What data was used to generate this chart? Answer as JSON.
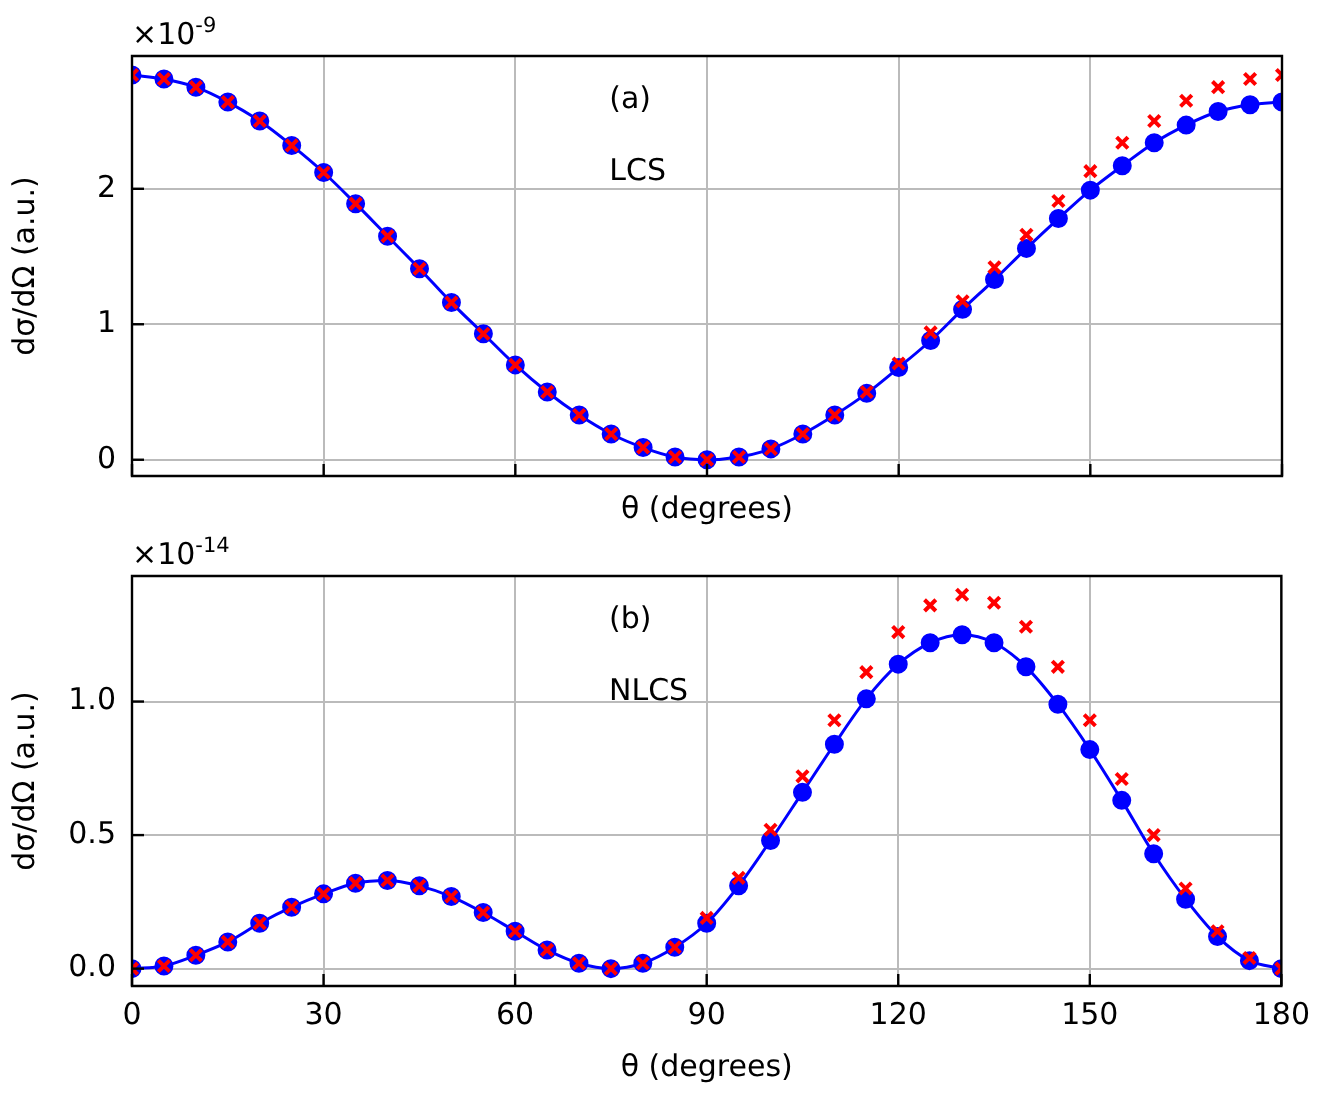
{
  "chart_data": [
    {
      "type": "line",
      "xlabel": "θ (degrees)",
      "ylabel": "dσ/dΩ (a.u.)",
      "annotations": [
        "×10$^{-9}$",
        "(a)",
        "LCS"
      ],
      "x": [
        0,
        5,
        10,
        15,
        20,
        25,
        30,
        35,
        40,
        45,
        50,
        55,
        60,
        65,
        70,
        75,
        80,
        85,
        90,
        95,
        100,
        105,
        110,
        115,
        120,
        125,
        130,
        135,
        140,
        145,
        150,
        155,
        160,
        165,
        170,
        175,
        180
      ],
      "series": [
        {
          "type": "line",
          "color": "#0000ff",
          "marker": "circle",
          "values": [
            2.84,
            2.81,
            2.75,
            2.64,
            2.5,
            2.32,
            2.12,
            1.89,
            1.65,
            1.41,
            1.16,
            0.93,
            0.7,
            0.5,
            0.33,
            0.19,
            0.09,
            0.02,
            0,
            0.02,
            0.08,
            0.19,
            0.33,
            0.49,
            0.68,
            0.88,
            1.11,
            1.33,
            1.56,
            1.78,
            1.99,
            2.17,
            2.34,
            2.47,
            2.57,
            2.62,
            2.64
          ]
        },
        {
          "type": "scatter",
          "color": "#ff0000",
          "marker": "cross",
          "values": [
            2.84,
            2.81,
            2.75,
            2.64,
            2.5,
            2.32,
            2.12,
            1.89,
            1.65,
            1.41,
            1.16,
            0.93,
            0.7,
            0.5,
            0.33,
            0.19,
            0.09,
            0.02,
            0,
            0.02,
            0.08,
            0.19,
            0.33,
            0.5,
            0.71,
            0.94,
            1.17,
            1.42,
            1.66,
            1.91,
            2.13,
            2.34,
            2.5,
            2.65,
            2.75,
            2.81,
            2.84
          ]
        }
      ],
      "xlim": [
        0,
        180
      ],
      "xticks": [
        0,
        30,
        60,
        90,
        120,
        150,
        180
      ],
      "ylim": [
        -0.12,
        2.98
      ],
      "yticks": [
        0,
        1,
        2
      ],
      "grid": true,
      "legend": false,
      "tick_labels": "y"
    },
    {
      "type": "line",
      "xlabel": "θ (degrees)",
      "ylabel": "dσ/dΩ (a.u.)",
      "annotations": [
        "×10$^{-14}$",
        "(b)",
        "NLCS"
      ],
      "x": [
        0,
        5,
        10,
        15,
        20,
        25,
        30,
        35,
        40,
        45,
        50,
        55,
        60,
        65,
        70,
        75,
        80,
        85,
        90,
        95,
        100,
        105,
        110,
        115,
        120,
        125,
        130,
        135,
        140,
        145,
        150,
        155,
        160,
        165,
        170,
        175,
        180
      ],
      "series": [
        {
          "type": "line",
          "color": "#0000ff",
          "marker": "circle",
          "values": [
            0,
            0.01,
            0.05,
            0.1,
            0.17,
            0.23,
            0.28,
            0.32,
            0.33,
            0.31,
            0.27,
            0.21,
            0.14,
            0.07,
            0.02,
            0,
            0.02,
            0.08,
            0.17,
            0.31,
            0.48,
            0.66,
            0.84,
            1.01,
            1.14,
            1.22,
            1.25,
            1.22,
            1.13,
            0.99,
            0.82,
            0.63,
            0.43,
            0.26,
            0.12,
            0.03,
            0
          ]
        },
        {
          "type": "scatter",
          "color": "#ff0000",
          "marker": "cross",
          "values": [
            0,
            0.01,
            0.05,
            0.1,
            0.17,
            0.23,
            0.28,
            0.32,
            0.33,
            0.31,
            0.27,
            0.21,
            0.14,
            0.07,
            0.02,
            0,
            0.02,
            0.08,
            0.19,
            0.34,
            0.52,
            0.72,
            0.93,
            1.11,
            1.26,
            1.36,
            1.4,
            1.37,
            1.28,
            1.13,
            0.93,
            0.71,
            0.5,
            0.3,
            0.14,
            0.04,
            0
          ]
        }
      ],
      "xlim": [
        0,
        180
      ],
      "xticks": [
        0,
        30,
        60,
        90,
        120,
        150,
        180
      ],
      "ylim": [
        -0.065,
        1.47
      ],
      "yticks": [
        {
          "value": 0,
          "label": "0.0"
        },
        {
          "value": 0.5,
          "label": "0.5"
        },
        {
          "value": 1,
          "label": "1.0"
        }
      ],
      "grid": true,
      "legend": false
    }
  ]
}
